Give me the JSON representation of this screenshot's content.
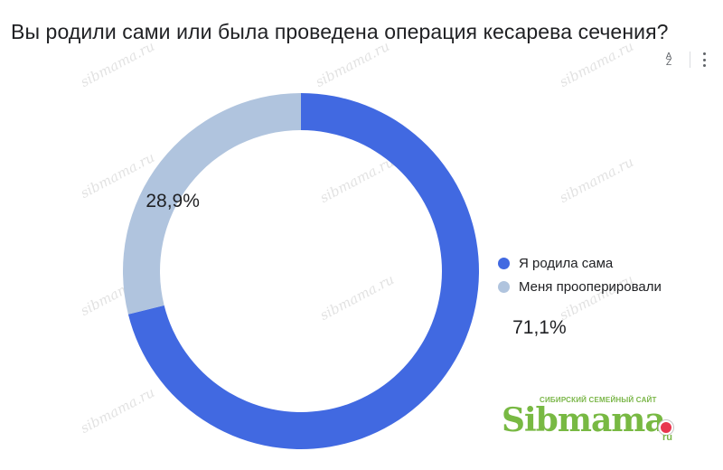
{
  "title": "Вы родили сами или была проведена операция кесарева сечения?",
  "toolbar": {
    "sort_icon": "sort-az-icon",
    "sort_top": "A",
    "sort_bottom": "Z",
    "more_icon": "more-vert-icon"
  },
  "chart_data": {
    "type": "pie",
    "donut": true,
    "title": "Вы родили сами или была проведена операция кесарева сечения?",
    "slices": [
      {
        "label": "Я родила сама",
        "value": 71.1,
        "display": "71,1%",
        "color": "#4169e1"
      },
      {
        "label": "Меня прооперировали",
        "value": 28.9,
        "display": "28,9%",
        "color": "#b0c4de"
      }
    ],
    "legend_position": "right"
  },
  "watermark": "sibmama.ru",
  "logo": {
    "tagline": "СИБИРСКИЙ СЕМЕЙНЫЙ САЙТ",
    "name": "Sibmama",
    "suffix": "ru"
  }
}
